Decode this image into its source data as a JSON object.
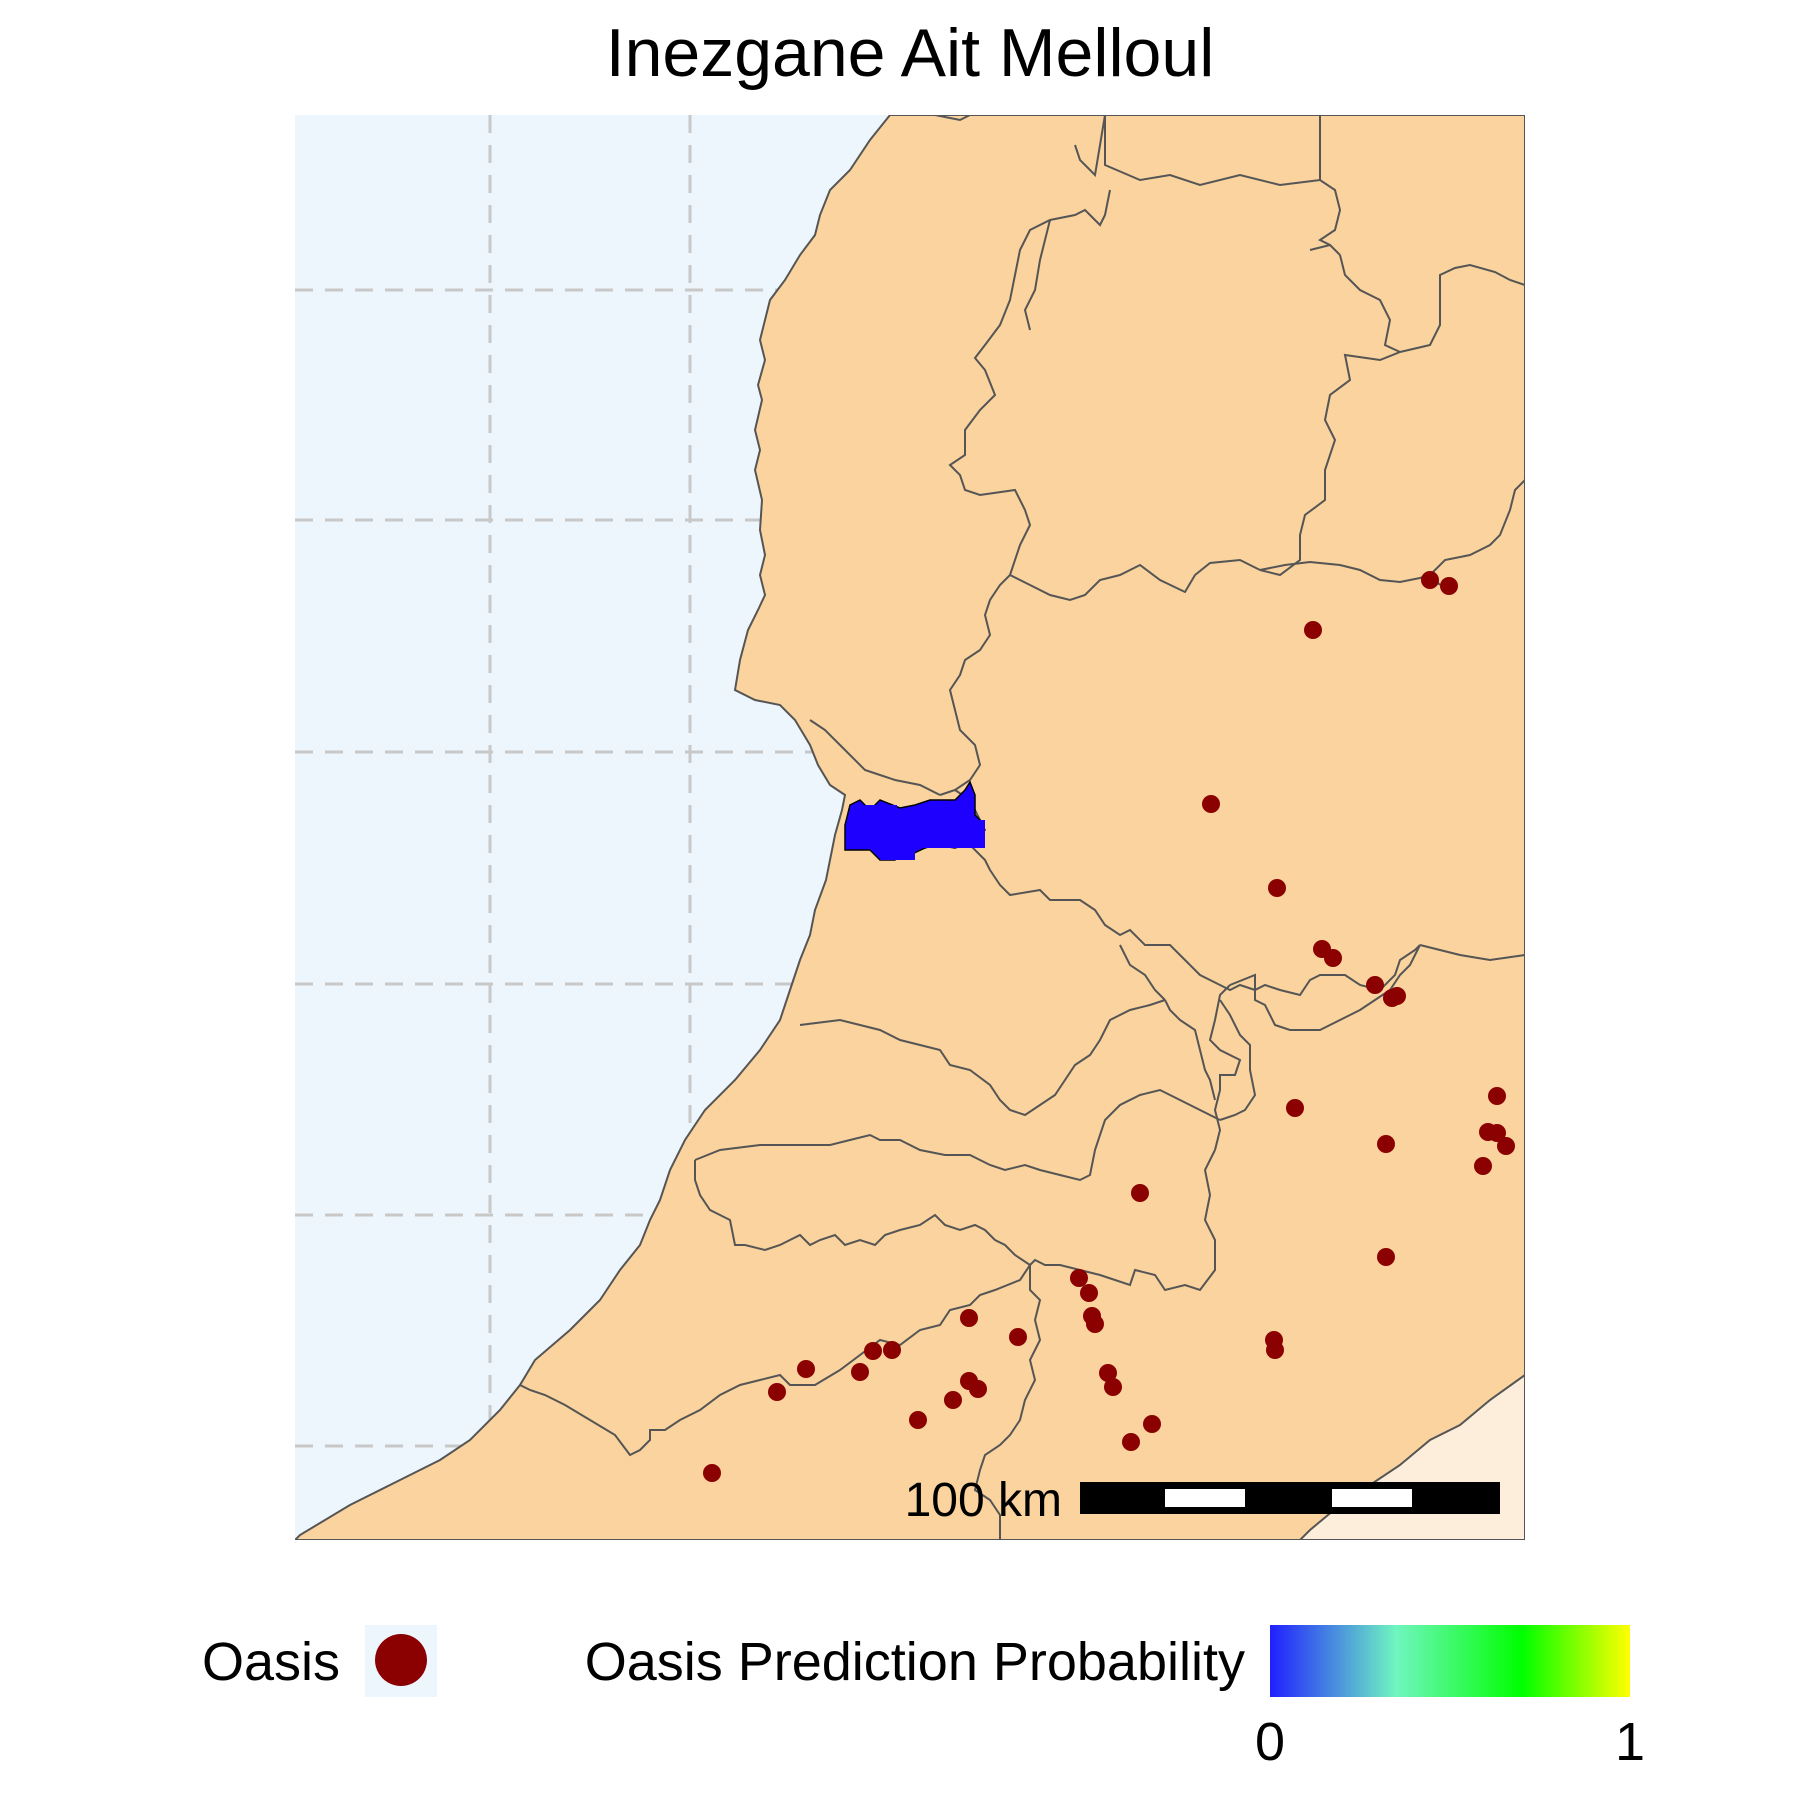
{
  "title": "Inezgane Ait Melloul",
  "colors": {
    "sea": "#eef6fd",
    "land": "#fad39e",
    "land_outside": "#fdeedb",
    "border": "#555555",
    "grid": "#c8c8c8",
    "highlight": "#1e00ff",
    "oasis": "#8b0000"
  },
  "scale_bar": {
    "label": "100 km"
  },
  "legend": {
    "oasis_label": "Oasis",
    "probability_label": "Oasis Prediction Probability",
    "probability_min": "0",
    "probability_max": "1",
    "gradient_colors": [
      "#2020ff",
      "#70f5c0",
      "#00ff00",
      "#ffff00"
    ]
  },
  "highlighted_region": "Inezgane Ait Melloul",
  "oasis_count": 46
}
